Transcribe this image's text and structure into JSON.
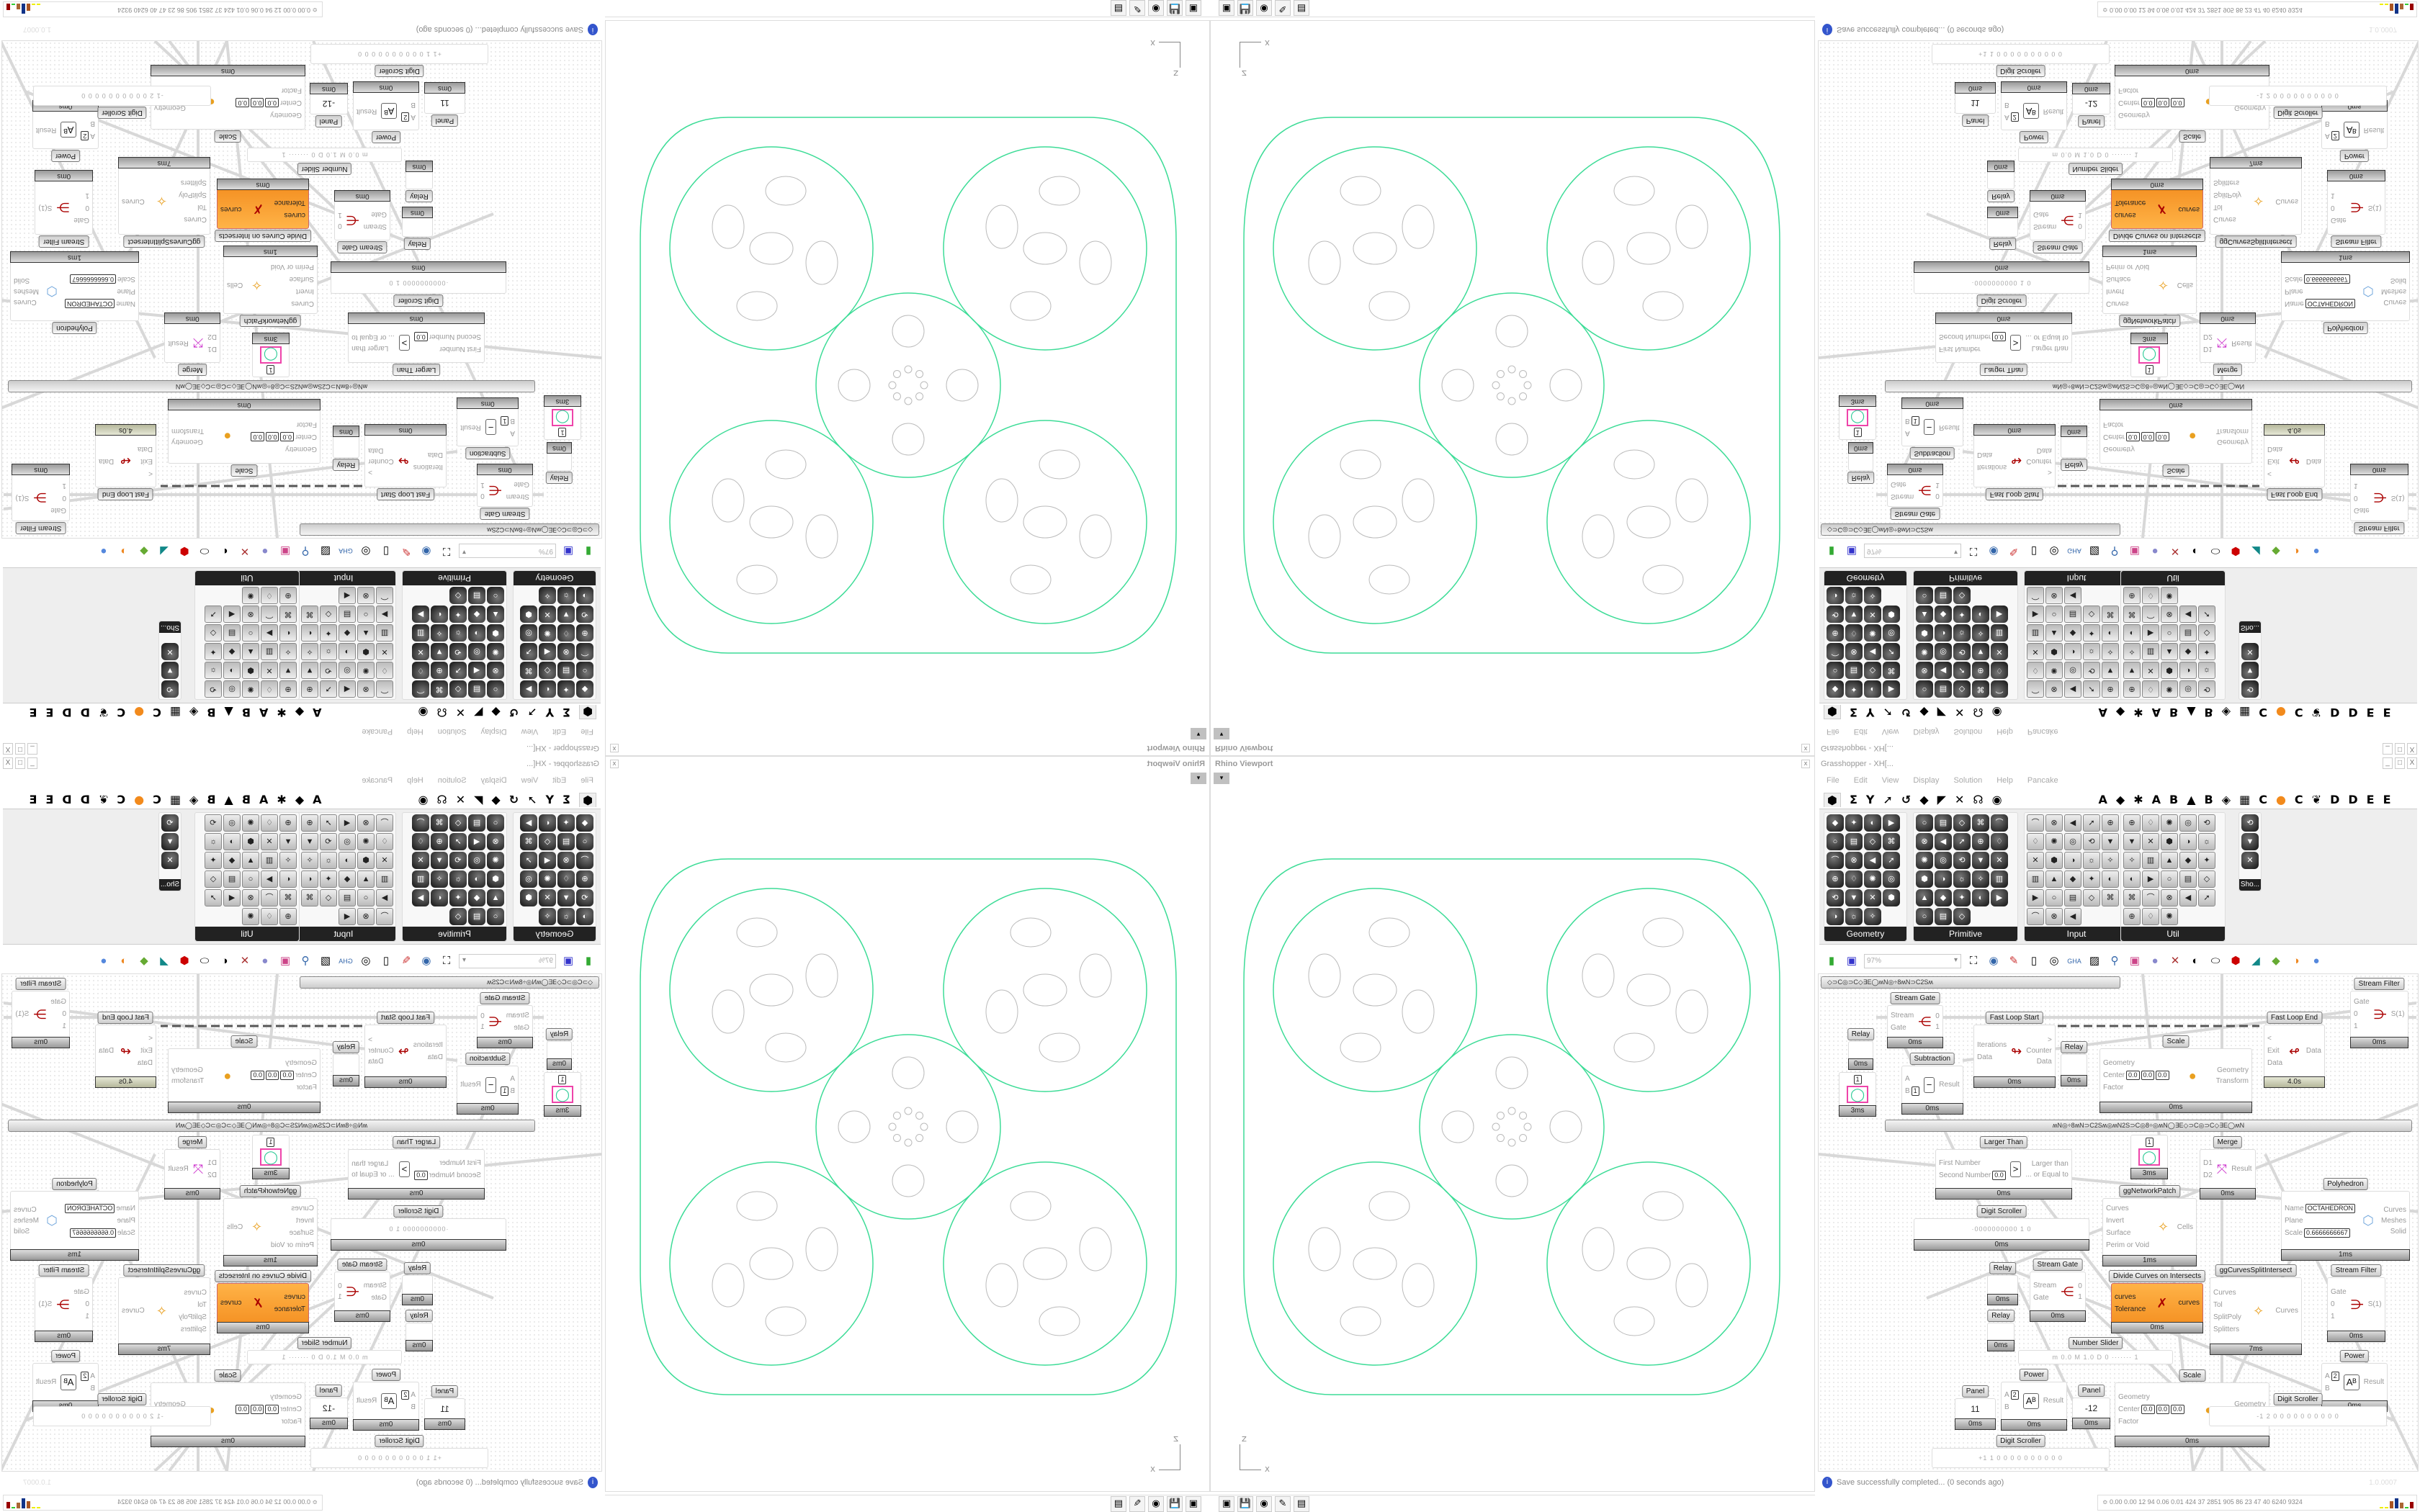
{
  "viewport": {
    "title": "Rhino Viewport",
    "close": "x",
    "menu_icon": "▾",
    "axis_z": "Z",
    "axis_x": "X",
    "curve_color": "#3ddc97",
    "detail_color": "#bbbbbb"
  },
  "taskbar": {
    "icons": [
      "terminal-icon",
      "floppy-64-icon",
      "firefox-icon",
      "inkscape-icon",
      "calculator-icon"
    ],
    "glyphs": [
      "▣",
      "💾",
      "◉",
      "✎",
      "▤"
    ]
  },
  "grasshopper": {
    "title": "Grasshopper - XH[...",
    "window_buttons": [
      "_",
      "□",
      "X"
    ],
    "menu": [
      "File",
      "Edit",
      "View",
      "Display",
      "Solution",
      "Help",
      "Pancake"
    ],
    "tabs": [
      "⬢",
      "Σ",
      "Y",
      "➚",
      "↺",
      "◆",
      "◤",
      "✕",
      "☊",
      "◉",
      "A",
      "◆",
      "✱",
      "A",
      "B",
      "▲",
      "B",
      "◈",
      "▦",
      "C",
      "●",
      "C",
      "❦",
      "D",
      "D",
      "E",
      "E"
    ],
    "panels": [
      {
        "title": "Geometry",
        "add": "+"
      },
      {
        "title": "Primitive",
        "add": "+"
      },
      {
        "title": "Input",
        "add": "+"
      },
      {
        "title": "Util",
        "add": "+"
      },
      {
        "title": "Sho..."
      }
    ],
    "toolbar": {
      "zoom": "97%"
    },
    "groups": [
      "◇⊃C◎⊃C◇∃E◯ʍN◎÷8ʍN⊃C2Sʍ",
      "ʍN◎÷8ʍN⊃C2Sʍ◎ʍN2S⊃C◎8÷◎ʍN◯∃E◇⊃C◎⊃C◇∃E◯ʍN"
    ],
    "components": [
      {
        "title": "Stream Gate",
        "ins": [
          "Stream",
          "Gate"
        ],
        "outs": [
          "0",
          "1"
        ],
        "time": "0ms",
        "glyph": "⋲"
      },
      {
        "title": "Relay",
        "ins": [],
        "outs": [],
        "time": "0ms"
      },
      {
        "title": "Fast Loop Start",
        "ins": [
          "Iterations",
          "Data"
        ],
        "outs": [
          ">",
          "Counter",
          "Data"
        ],
        "time": "0ms",
        "glyph": "↬"
      },
      {
        "title": "Relay",
        "ins": [],
        "outs": [],
        "time": "0ms"
      },
      {
        "title": "Scale",
        "ins": [
          "Geometry",
          "Center",
          "Factor"
        ],
        "outs": [
          "Geometry",
          "Transform"
        ],
        "time": "0ms",
        "glyph": "●",
        "values": [
          "0.0",
          "0.0",
          "0.0"
        ]
      },
      {
        "title": "Fast Loop End",
        "ins": [
          "<",
          "Exit",
          "Data"
        ],
        "outs": [
          "Data"
        ],
        "time": "4.0s",
        "glyph": "↫",
        "long": true
      },
      {
        "title": "Stream Filter",
        "ins": [
          "Gate",
          "0",
          "1"
        ],
        "outs": [
          "S(1)"
        ],
        "time": "0ms",
        "glyph": "⋺"
      },
      {
        "title": "Subtraction",
        "ins": [
          "A",
          "B"
        ],
        "outs": [
          "Result"
        ],
        "time": "0ms",
        "glyph": "−",
        "values": [
          "1"
        ]
      },
      {
        "title": "Larger Than",
        "ins": [
          "First Number",
          "Second Number"
        ],
        "outs": [
          "Larger than",
          "... or Equal to"
        ],
        "time": "0ms",
        "glyph": ">",
        "values": [
          "0.0"
        ]
      },
      {
        "title": "",
        "ins": [],
        "outs": [],
        "time": "3ms",
        "glyph": "◯",
        "values": [
          "1"
        ]
      },
      {
        "title": "ggNetworkPatch",
        "ins": [
          "Curves",
          "Invert",
          "Surface",
          "Perim or Void"
        ],
        "outs": [
          "Cells"
        ],
        "time": "1ms",
        "glyph": "✧"
      },
      {
        "title": "Merge",
        "ins": [
          "D1",
          "D2"
        ],
        "outs": [
          "Result"
        ],
        "time": "0ms",
        "glyph": "⤧"
      },
      {
        "title": "Digit Scroller",
        "ins": [],
        "outs": [],
        "time": "0ms",
        "values": [
          "·0000000000 1 0"
        ]
      },
      {
        "title": "Polyhedron",
        "ins": [
          "Name",
          "Plane",
          "Scale"
        ],
        "outs": [
          "Curves",
          "Meshes",
          "Solid"
        ],
        "time": "1ms",
        "glyph": "⬡",
        "values": [
          "OCTAHEDRON",
          "0.6666666667"
        ]
      },
      {
        "title": "",
        "ins": [],
        "outs": [],
        "time": "3ms",
        "glyph": "◯",
        "values": [
          "1"
        ]
      },
      {
        "title": "Relay",
        "ins": [],
        "outs": [],
        "time": "0ms"
      },
      {
        "title": "Relay",
        "ins": [],
        "outs": [],
        "time": "0ms"
      },
      {
        "title": "Stream Gate",
        "ins": [
          "Stream",
          "Gate"
        ],
        "outs": [
          "0",
          "1"
        ],
        "time": "0ms",
        "glyph": "⋲"
      },
      {
        "title": "Divide Curves on Intersects",
        "ins": [
          "curves",
          "Tolerance"
        ],
        "outs": [
          "curves"
        ],
        "time": "0ms",
        "glyph": "✗",
        "orange": true
      },
      {
        "title": "ggCurvesSplitIntersect",
        "ins": [
          "Curves",
          "Tol",
          "SplitPoly",
          "Splitters"
        ],
        "outs": [
          "Curves"
        ],
        "time": "7ms",
        "glyph": "✧"
      },
      {
        "title": "Stream Filter",
        "ins": [
          "Gate",
          "0",
          "1"
        ],
        "outs": [
          "S(1)"
        ],
        "time": "0ms",
        "glyph": "⋺"
      },
      {
        "title": "Number Slider",
        "ins": [],
        "outs": [],
        "time": "",
        "values": [
          "m 0.0  M 1.0  D 0   ·······  1"
        ]
      },
      {
        "title": "Scale",
        "ins": [
          "Geometry",
          "Center",
          "Factor"
        ],
        "outs": [
          "Geometry",
          "Transform"
        ],
        "time": "0ms",
        "glyph": "●",
        "values": [
          "0.0",
          "0.0",
          "0.0"
        ]
      },
      {
        "title": "Power",
        "ins": [
          "A",
          "B"
        ],
        "outs": [
          "Result"
        ],
        "time": "0ms",
        "glyph": "Aᴮ",
        "values": [
          "2"
        ]
      },
      {
        "title": "Power",
        "ins": [
          "A",
          "B"
        ],
        "outs": [
          "Result"
        ],
        "time": "0ms",
        "glyph": "Aᴮ",
        "values": [
          "2"
        ]
      },
      {
        "title": "Digit Scroller",
        "ins": [],
        "outs": [],
        "time": "",
        "values": [
          "+1 1 0 0 0 0 0 0 0 0 0 0"
        ]
      },
      {
        "title": "Digit Scroller",
        "ins": [],
        "outs": [],
        "time": "",
        "values": [
          "-1 2 0 0 0 0 0 0 0 0 0 0"
        ]
      },
      {
        "title": "Panel",
        "ins": [],
        "outs": [],
        "time": "0ms",
        "values": [
          "11"
        ]
      },
      {
        "title": "Panel",
        "ins": [],
        "outs": [],
        "time": "0ms",
        "values": [
          "-12"
        ]
      }
    ],
    "status": {
      "icon": "i",
      "message": "Save successfully completed... (0 seconds ago)",
      "version": "1.0.0007"
    },
    "perf": {
      "text": "≎  0.00 0.00  12  94  0.06 0.01  424  37  2851 905  86  23  47  40  6240 9324"
    },
    "accent_orange": "#f28a1c"
  }
}
